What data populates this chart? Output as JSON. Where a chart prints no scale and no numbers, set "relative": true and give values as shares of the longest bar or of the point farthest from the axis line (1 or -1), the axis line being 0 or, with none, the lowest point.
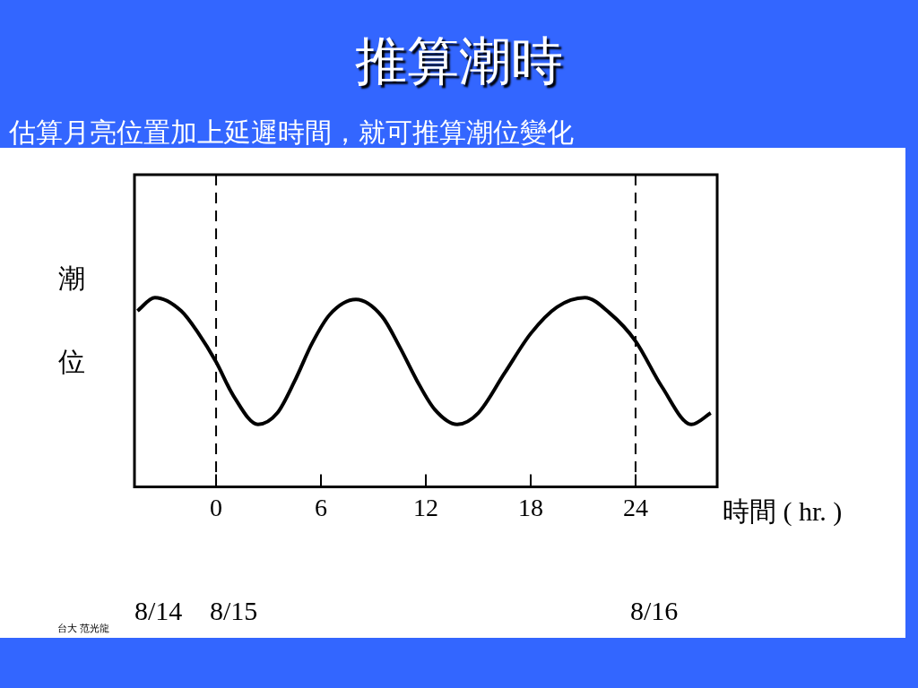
{
  "chart_data": {
    "type": "line",
    "title": "推算潮時",
    "subtitle": "估算月亮位置加上延遲時間，就可推算潮位變化",
    "xlabel": "時間 ( hr. )",
    "ylabel": "潮位",
    "relative": true,
    "color": "#000000",
    "x": [
      -4.5,
      -3.5,
      -2.0,
      -1.0,
      0,
      1.0,
      2.4,
      3.5,
      4.5,
      5.5,
      6.5,
      8.0,
      9.5,
      10.5,
      11.5,
      12.5,
      13.8,
      15.0,
      16.5,
      18.0,
      19.5,
      21.1,
      22.5,
      24.0,
      25.5,
      27.2,
      28.3
    ],
    "values": [
      0.93,
      1.0,
      0.93,
      0.81,
      0.66,
      0.48,
      0.33,
      0.39,
      0.56,
      0.76,
      0.91,
      0.99,
      0.9,
      0.74,
      0.56,
      0.41,
      0.33,
      0.39,
      0.6,
      0.81,
      0.95,
      1.0,
      0.92,
      0.77,
      0.53,
      0.33,
      0.39
    ],
    "xlim": [
      -4.67,
      28.67
    ],
    "xticks": [
      0,
      6,
      12,
      18,
      24
    ],
    "ref_lines": [
      {
        "axis": "x",
        "value": 0,
        "line_style": "dashed"
      },
      {
        "axis": "x",
        "value": 24,
        "line_style": "dashed"
      }
    ],
    "annotations": [
      "8/14",
      "8/15",
      "8/16",
      "台大 范光龍"
    ],
    "grid": false,
    "legend": false,
    "marker": "none",
    "line_style": "solid"
  }
}
